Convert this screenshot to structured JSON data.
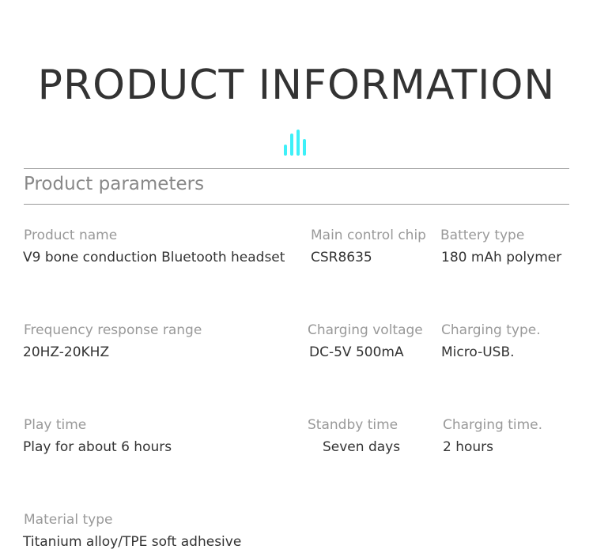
{
  "title": "PRODUCT INFORMATION",
  "icon": "equalizer-bars-icon",
  "accent": "#3ef0f8",
  "subtitle": "Product parameters",
  "params": [
    {
      "label": "Product name",
      "value": "V9 bone conduction Bluetooth headset"
    },
    {
      "label": "Main control chip",
      "value": "CSR8635"
    },
    {
      "label": "Battery type",
      "value": "180 mAh polymer"
    },
    {
      "label": "Frequency response range",
      "value": "20HZ-20KHZ"
    },
    {
      "label": "Charging voltage",
      "value": "DC-5V 500mA"
    },
    {
      "label": "Charging type.",
      "value": "Micro-USB."
    },
    {
      "label": "Play time",
      "value": "Play for about 6 hours"
    },
    {
      "label": "Standby time",
      "value": "Seven days"
    },
    {
      "label": "Charging time.",
      "value": "2 hours"
    },
    {
      "label": "Material type",
      "value": "Titanium alloy/TPE soft adhesive"
    }
  ]
}
